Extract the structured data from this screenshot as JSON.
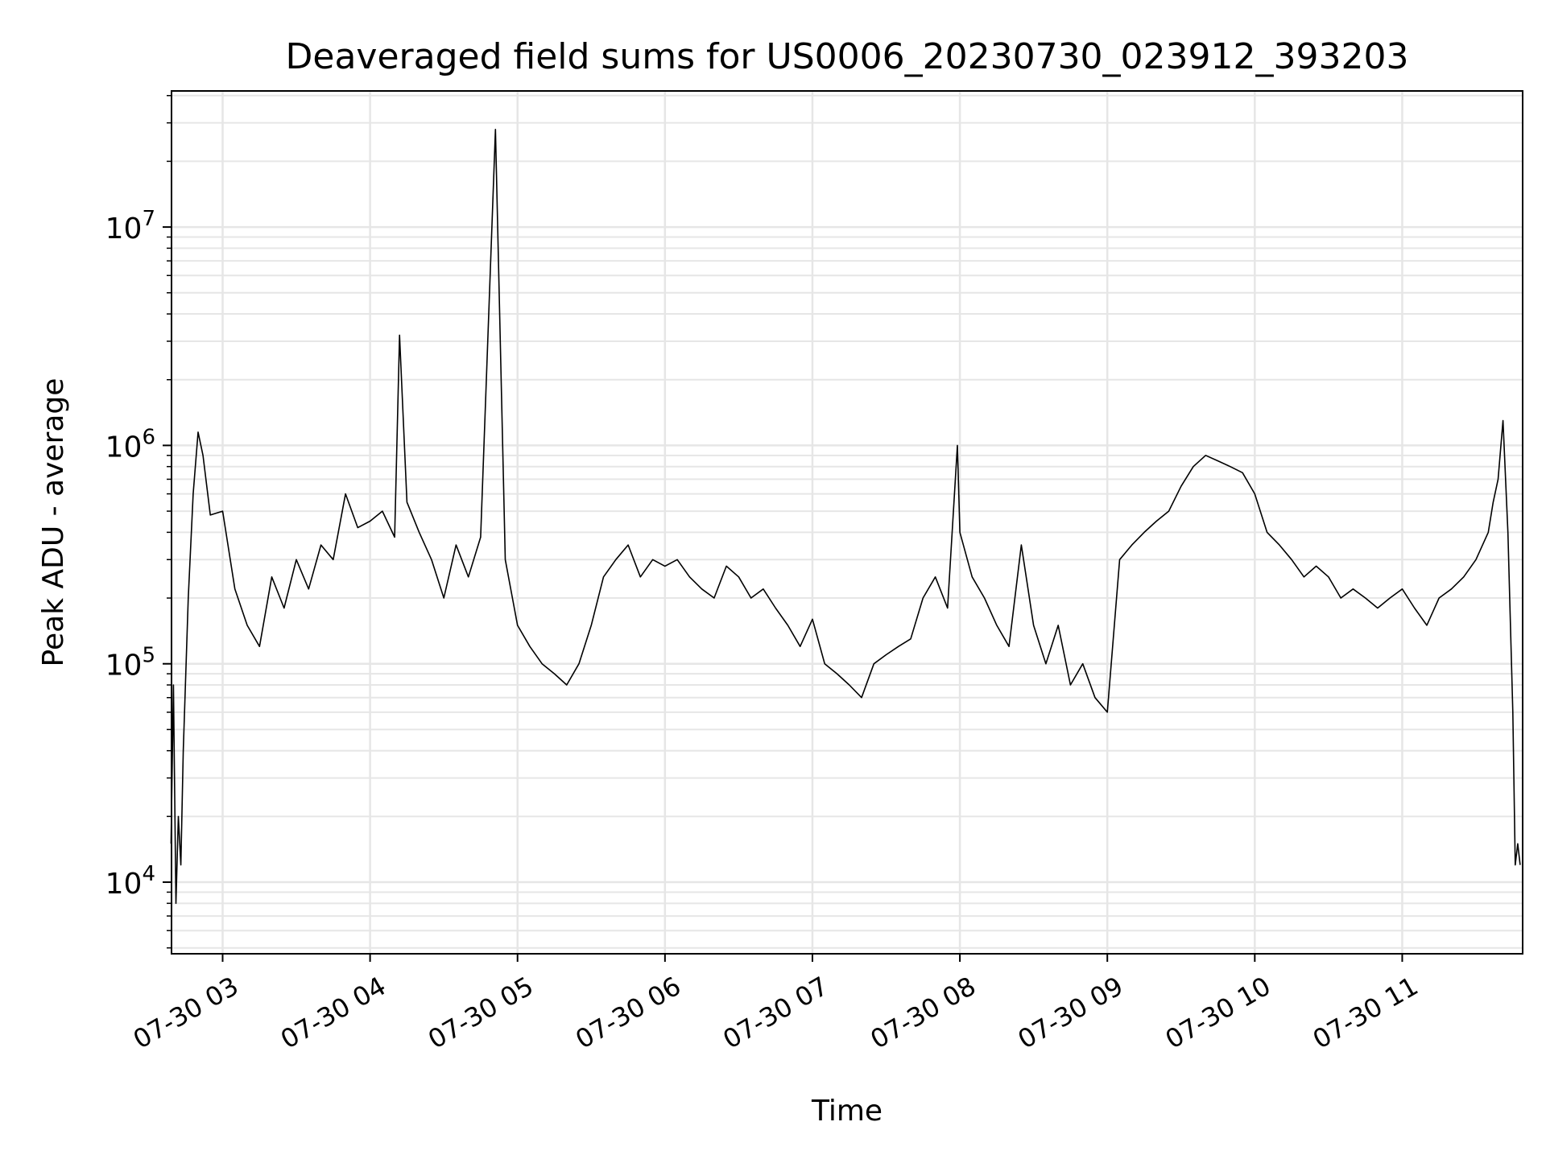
{
  "chart_data": {
    "type": "line",
    "title": "Deaveraged field sums for US0006_20230730_023912_393203",
    "xlabel": "Time",
    "ylabel": "Peak ADU - average",
    "y_scale": "log",
    "grid": true,
    "legend": "none",
    "line_color": "#000000",
    "grid_color": "#e6e6e6",
    "xlim": [
      "2023-07-30T02:39:12",
      "2023-07-30T11:49:00"
    ],
    "ylim": [
      4700,
      42000000
    ],
    "x_ticks": [
      {
        "t": "2023-07-30T03:00",
        "label": "07-30 03"
      },
      {
        "t": "2023-07-30T04:00",
        "label": "07-30 04"
      },
      {
        "t": "2023-07-30T05:00",
        "label": "07-30 05"
      },
      {
        "t": "2023-07-30T06:00",
        "label": "07-30 06"
      },
      {
        "t": "2023-07-30T07:00",
        "label": "07-30 07"
      },
      {
        "t": "2023-07-30T08:00",
        "label": "07-30 08"
      },
      {
        "t": "2023-07-30T09:00",
        "label": "07-30 09"
      },
      {
        "t": "2023-07-30T10:00",
        "label": "07-30 10"
      },
      {
        "t": "2023-07-30T11:00",
        "label": "07-30 11"
      }
    ],
    "y_ticks": [
      {
        "value": 10000,
        "base": "10",
        "exp": "4"
      },
      {
        "value": 100000,
        "base": "10",
        "exp": "5"
      },
      {
        "value": 1000000,
        "base": "10",
        "exp": "6"
      },
      {
        "value": 10000000,
        "base": "10",
        "exp": "7"
      }
    ],
    "series": [
      {
        "x": [
          "2023-07-30T02:39",
          "2023-07-30T02:40",
          "2023-07-30T02:41",
          "2023-07-30T02:42",
          "2023-07-30T02:43",
          "2023-07-30T02:44",
          "2023-07-30T02:46",
          "2023-07-30T02:48",
          "2023-07-30T02:50",
          "2023-07-30T02:52",
          "2023-07-30T02:55",
          "2023-07-30T03:00",
          "2023-07-30T03:05",
          "2023-07-30T03:10",
          "2023-07-30T03:15",
          "2023-07-30T03:20",
          "2023-07-30T03:25",
          "2023-07-30T03:30",
          "2023-07-30T03:35",
          "2023-07-30T03:40",
          "2023-07-30T03:45",
          "2023-07-30T03:50",
          "2023-07-30T03:55",
          "2023-07-30T04:00",
          "2023-07-30T04:05",
          "2023-07-30T04:10",
          "2023-07-30T04:12",
          "2023-07-30T04:15",
          "2023-07-30T04:20",
          "2023-07-30T04:25",
          "2023-07-30T04:30",
          "2023-07-30T04:35",
          "2023-07-30T04:40",
          "2023-07-30T04:45",
          "2023-07-30T04:51",
          "2023-07-30T04:55",
          "2023-07-30T05:00",
          "2023-07-30T05:05",
          "2023-07-30T05:10",
          "2023-07-30T05:15",
          "2023-07-30T05:20",
          "2023-07-30T05:25",
          "2023-07-30T05:30",
          "2023-07-30T05:35",
          "2023-07-30T05:40",
          "2023-07-30T05:45",
          "2023-07-30T05:50",
          "2023-07-30T05:55",
          "2023-07-30T06:00",
          "2023-07-30T06:05",
          "2023-07-30T06:10",
          "2023-07-30T06:15",
          "2023-07-30T06:20",
          "2023-07-30T06:25",
          "2023-07-30T06:30",
          "2023-07-30T06:35",
          "2023-07-30T06:40",
          "2023-07-30T06:45",
          "2023-07-30T06:50",
          "2023-07-30T06:55",
          "2023-07-30T07:00",
          "2023-07-30T07:05",
          "2023-07-30T07:10",
          "2023-07-30T07:15",
          "2023-07-30T07:20",
          "2023-07-30T07:25",
          "2023-07-30T07:30",
          "2023-07-30T07:35",
          "2023-07-30T07:40",
          "2023-07-30T07:45",
          "2023-07-30T07:50",
          "2023-07-30T07:55",
          "2023-07-30T07:59",
          "2023-07-30T08:00",
          "2023-07-30T08:05",
          "2023-07-30T08:10",
          "2023-07-30T08:15",
          "2023-07-30T08:20",
          "2023-07-30T08:25",
          "2023-07-30T08:30",
          "2023-07-30T08:35",
          "2023-07-30T08:40",
          "2023-07-30T08:45",
          "2023-07-30T08:50",
          "2023-07-30T08:55",
          "2023-07-30T09:00",
          "2023-07-30T09:05",
          "2023-07-30T09:10",
          "2023-07-30T09:15",
          "2023-07-30T09:20",
          "2023-07-30T09:25",
          "2023-07-30T09:30",
          "2023-07-30T09:35",
          "2023-07-30T09:40",
          "2023-07-30T09:45",
          "2023-07-30T09:50",
          "2023-07-30T09:55",
          "2023-07-30T10:00",
          "2023-07-30T10:05",
          "2023-07-30T10:10",
          "2023-07-30T10:15",
          "2023-07-30T10:20",
          "2023-07-30T10:25",
          "2023-07-30T10:30",
          "2023-07-30T10:35",
          "2023-07-30T10:40",
          "2023-07-30T10:45",
          "2023-07-30T10:50",
          "2023-07-30T10:55",
          "2023-07-30T11:00",
          "2023-07-30T11:05",
          "2023-07-30T11:10",
          "2023-07-30T11:15",
          "2023-07-30T11:20",
          "2023-07-30T11:25",
          "2023-07-30T11:30",
          "2023-07-30T11:35",
          "2023-07-30T11:37",
          "2023-07-30T11:39",
          "2023-07-30T11:41",
          "2023-07-30T11:43",
          "2023-07-30T11:45",
          "2023-07-30T11:46",
          "2023-07-30T11:47",
          "2023-07-30T11:48"
        ],
        "y": [
          15000,
          80000,
          8000,
          20000,
          12000,
          40000,
          200000,
          600000,
          1150000,
          900000,
          480000,
          500000,
          220000,
          150000,
          120000,
          250000,
          180000,
          300000,
          220000,
          350000,
          300000,
          600000,
          420000,
          450000,
          500000,
          380000,
          3200000,
          550000,
          400000,
          300000,
          200000,
          350000,
          250000,
          380000,
          28000000,
          300000,
          150000,
          120000,
          100000,
          90000,
          80000,
          100000,
          150000,
          250000,
          300000,
          350000,
          250000,
          300000,
          280000,
          300000,
          250000,
          220000,
          200000,
          280000,
          250000,
          200000,
          220000,
          180000,
          150000,
          120000,
          160000,
          100000,
          90000,
          80000,
          70000,
          100000,
          110000,
          120000,
          130000,
          200000,
          250000,
          180000,
          1000000,
          400000,
          250000,
          200000,
          150000,
          120000,
          350000,
          150000,
          100000,
          150000,
          80000,
          100000,
          70000,
          60000,
          300000,
          350000,
          400000,
          450000,
          500000,
          650000,
          800000,
          900000,
          850000,
          800000,
          750000,
          600000,
          400000,
          350000,
          300000,
          250000,
          280000,
          250000,
          200000,
          220000,
          200000,
          180000,
          200000,
          220000,
          180000,
          150000,
          200000,
          220000,
          250000,
          300000,
          400000,
          550000,
          700000,
          1300000,
          400000,
          60000,
          12000,
          15000,
          12000
        ]
      }
    ]
  }
}
